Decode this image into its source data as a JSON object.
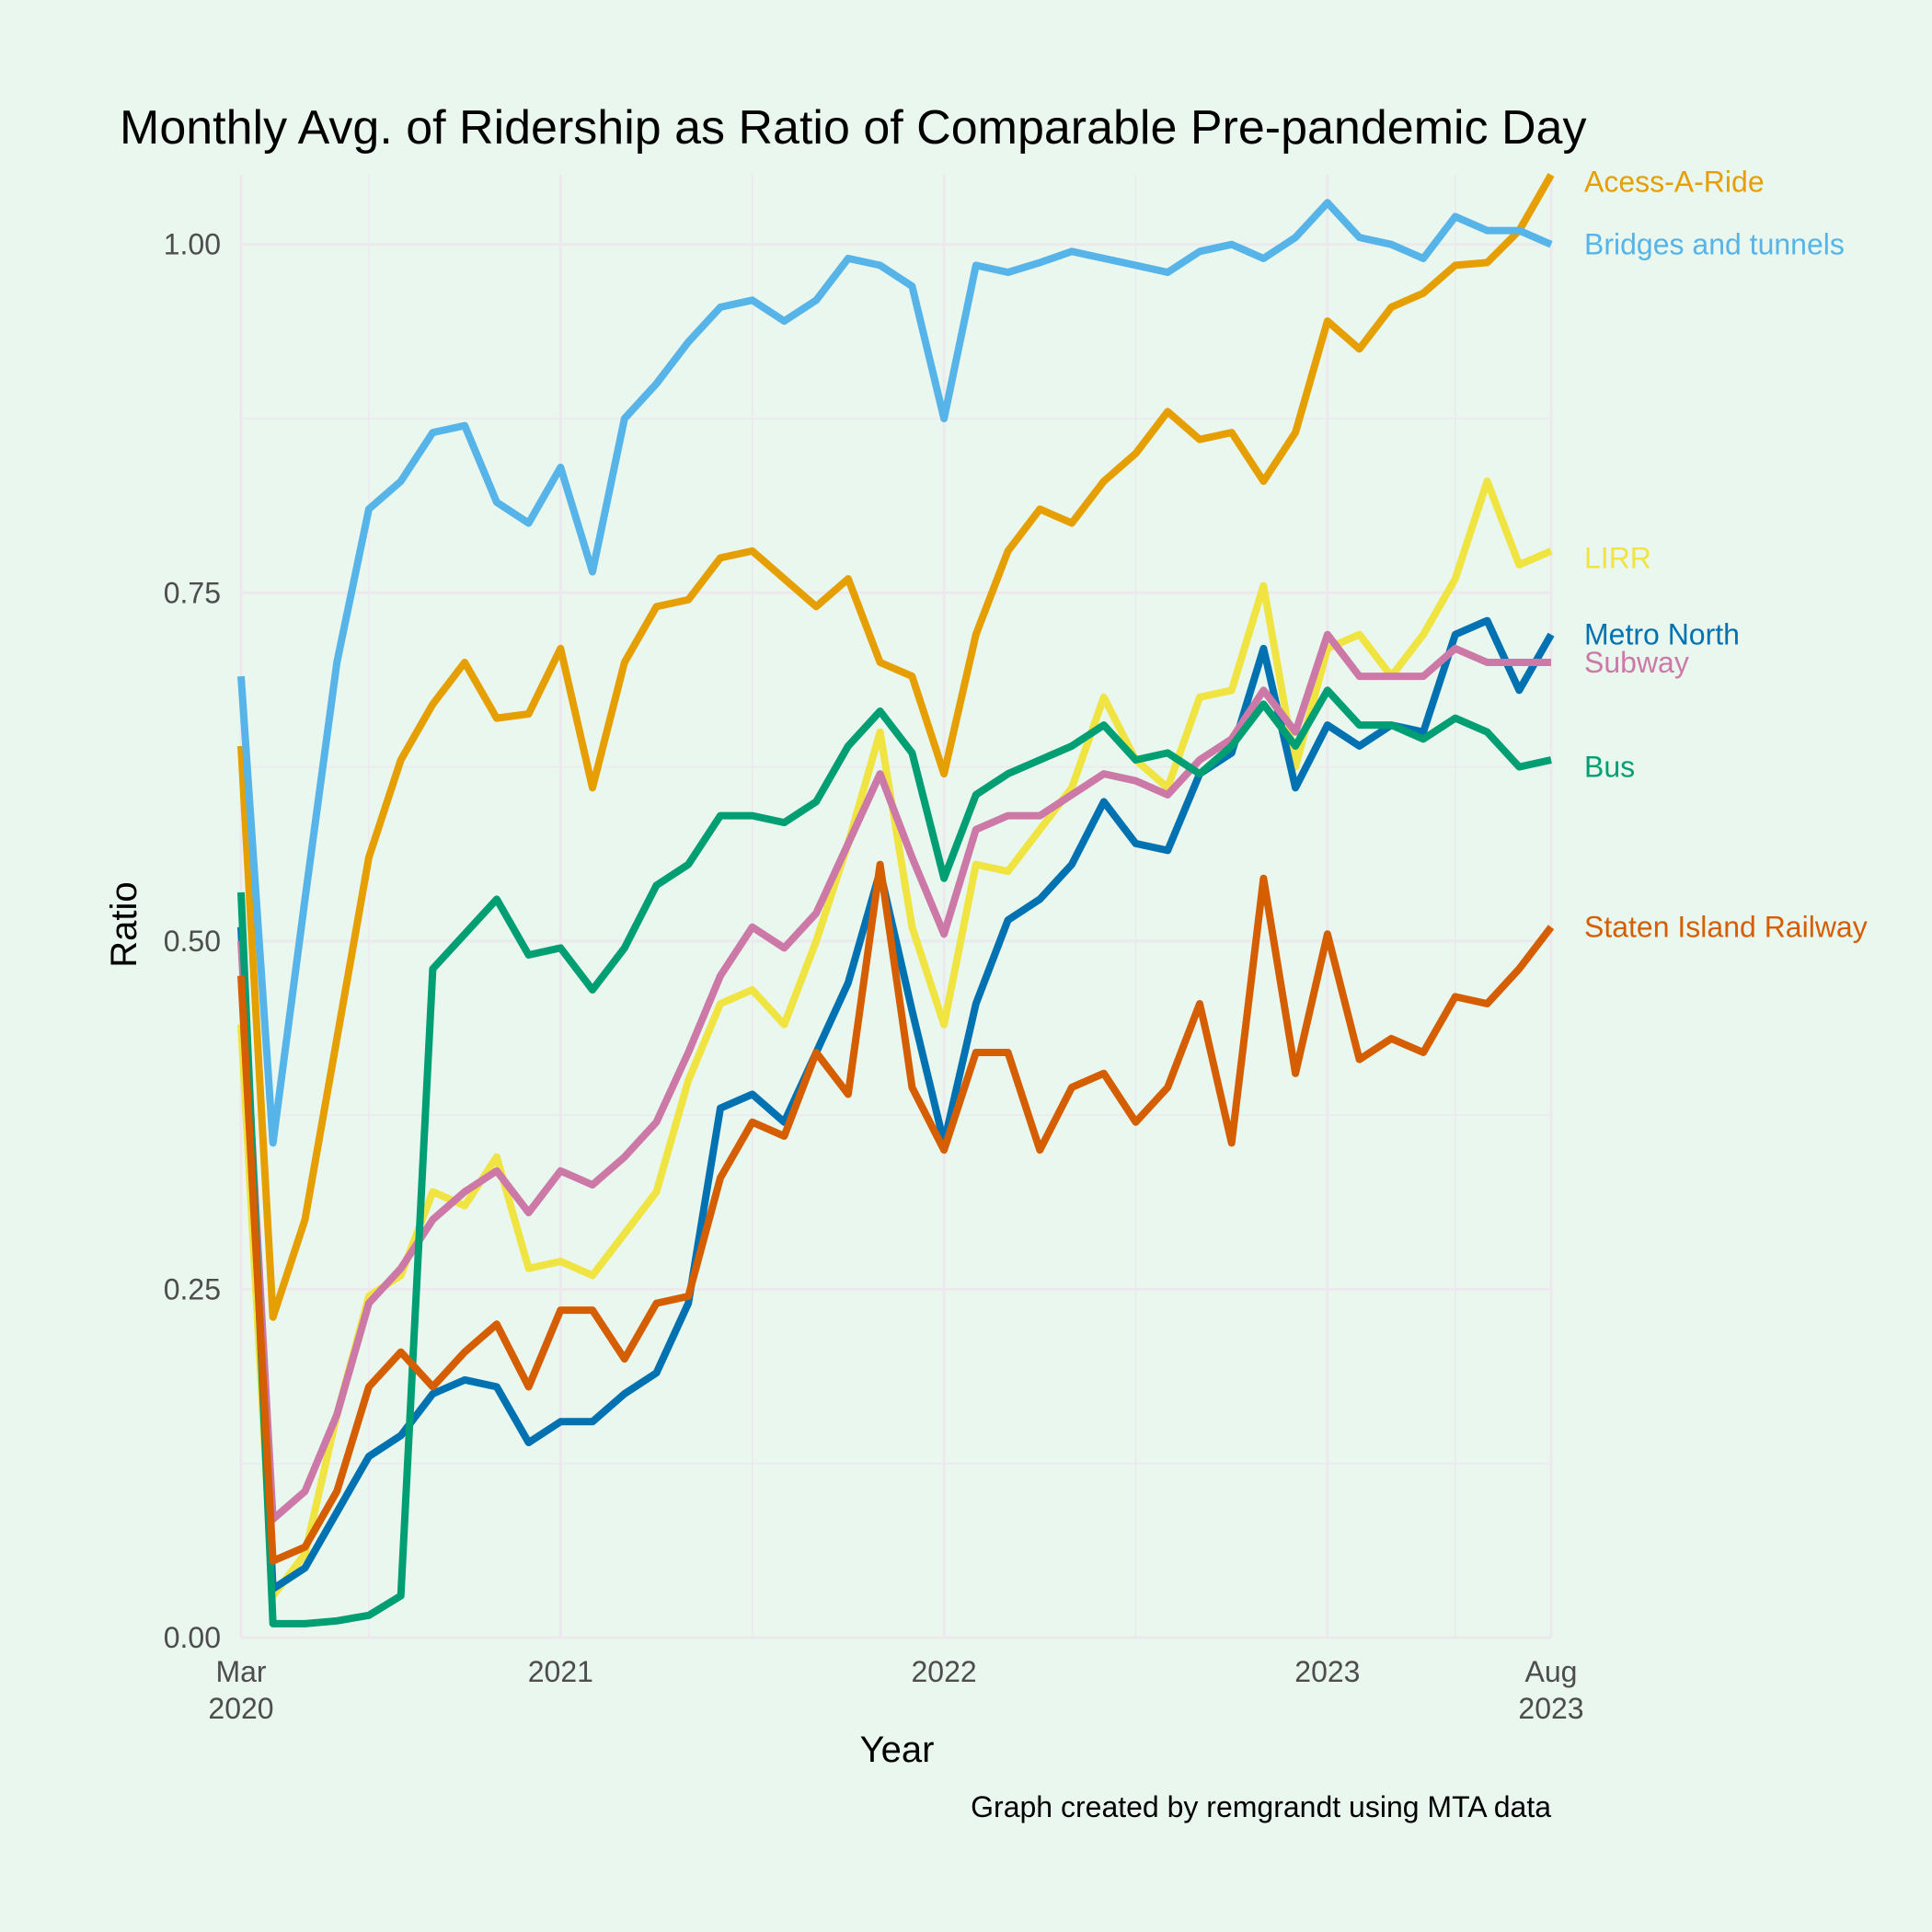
{
  "chart_data": {
    "type": "line",
    "title": "Monthly Avg. of Ridership as Ratio of Comparable Pre-pandemic Day",
    "xlabel": "Year",
    "ylabel": "Ratio",
    "caption": "Graph created by remgrandt using MTA data",
    "x_start": "2020-03",
    "x_end": "2023-08",
    "xlim": [
      "2020-03",
      "2023-08"
    ],
    "ylim": [
      0,
      1.05
    ],
    "grid": true,
    "legend": "direct labels at right end of lines",
    "x_ticks": [
      {
        "date": "2020-03",
        "label": "Mar",
        "label2": "2020"
      },
      {
        "date": "2021-01",
        "label": "2021",
        "label2": ""
      },
      {
        "date": "2022-01",
        "label": "2022",
        "label2": ""
      },
      {
        "date": "2023-01",
        "label": "2023",
        "label2": ""
      },
      {
        "date": "2023-08",
        "label": "Aug",
        "label2": "2023"
      }
    ],
    "y_ticks": [
      {
        "value": 0.0,
        "label": "0.00"
      },
      {
        "value": 0.25,
        "label": "0.25"
      },
      {
        "value": 0.5,
        "label": "0.50"
      },
      {
        "value": 0.75,
        "label": "0.75"
      },
      {
        "value": 1.0,
        "label": "1.00"
      }
    ],
    "series": [
      {
        "name": "Acess-A-Ride",
        "color": "#E69F00",
        "label_y": 1.045,
        "values": [
          0.64,
          0.23,
          0.3,
          0.43,
          0.56,
          0.63,
          0.67,
          0.7,
          0.66,
          0.663,
          0.71,
          0.61,
          0.7,
          0.74,
          0.745,
          0.775,
          0.78,
          0.76,
          0.74,
          0.76,
          0.7,
          0.69,
          0.62,
          0.72,
          0.78,
          0.81,
          0.8,
          0.83,
          0.85,
          0.88,
          0.86,
          0.865,
          0.83,
          0.865,
          0.945,
          0.925,
          0.955,
          0.965,
          0.985,
          0.987,
          1.01,
          1.05
        ]
      },
      {
        "name": "Bridges and tunnels",
        "color": "#56B4E9",
        "label_y": 1.0,
        "values": [
          0.69,
          0.355,
          0.53,
          0.7,
          0.81,
          0.83,
          0.865,
          0.87,
          0.815,
          0.8,
          0.84,
          0.765,
          0.875,
          0.9,
          0.93,
          0.955,
          0.96,
          0.945,
          0.96,
          0.99,
          0.985,
          0.97,
          0.875,
          0.985,
          0.98,
          0.987,
          0.995,
          0.99,
          0.985,
          0.98,
          0.995,
          1.0,
          0.99,
          1.005,
          1.03,
          1.005,
          1.0,
          0.99,
          1.02,
          1.01,
          1.01,
          1.0
        ]
      },
      {
        "name": "LIRR",
        "color": "#F0E442",
        "label_y": 0.775,
        "values": [
          0.44,
          0.03,
          0.06,
          0.16,
          0.245,
          0.26,
          0.32,
          0.31,
          0.345,
          0.265,
          0.27,
          0.26,
          0.29,
          0.32,
          0.4,
          0.455,
          0.465,
          0.44,
          0.5,
          0.57,
          0.65,
          0.51,
          0.44,
          0.555,
          0.55,
          0.58,
          0.61,
          0.675,
          0.63,
          0.61,
          0.675,
          0.68,
          0.755,
          0.625,
          0.71,
          0.72,
          0.69,
          0.72,
          0.76,
          0.83,
          0.77,
          0.78
        ]
      },
      {
        "name": "Metro North",
        "color": "#0072B2",
        "label_y": 0.72,
        "values": [
          0.51,
          0.035,
          0.05,
          0.09,
          0.13,
          0.145,
          0.175,
          0.185,
          0.18,
          0.14,
          0.155,
          0.155,
          0.175,
          0.19,
          0.24,
          0.38,
          0.39,
          0.37,
          0.42,
          0.47,
          0.55,
          0.45,
          0.355,
          0.455,
          0.515,
          0.53,
          0.555,
          0.6,
          0.57,
          0.565,
          0.62,
          0.635,
          0.71,
          0.61,
          0.655,
          0.64,
          0.655,
          0.65,
          0.72,
          0.73,
          0.68,
          0.72
        ]
      },
      {
        "name": "Subway",
        "color": "#CC79A7",
        "label_y": 0.7,
        "values": [
          0.5,
          0.085,
          0.105,
          0.16,
          0.24,
          0.265,
          0.3,
          0.32,
          0.335,
          0.305,
          0.335,
          0.325,
          0.345,
          0.37,
          0.42,
          0.475,
          0.51,
          0.495,
          0.52,
          0.57,
          0.62,
          0.56,
          0.505,
          0.58,
          0.59,
          0.59,
          0.605,
          0.62,
          0.615,
          0.605,
          0.63,
          0.645,
          0.68,
          0.65,
          0.72,
          0.69,
          0.69,
          0.69,
          0.71,
          0.7,
          0.7,
          0.7
        ]
      },
      {
        "name": "Bus",
        "color": "#009E73",
        "label_y": 0.625,
        "values": [
          0.535,
          0.01,
          0.01,
          0.012,
          0.016,
          0.03,
          0.48,
          0.505,
          0.53,
          0.49,
          0.495,
          0.465,
          0.495,
          0.54,
          0.555,
          0.59,
          0.59,
          0.585,
          0.6,
          0.64,
          0.665,
          0.635,
          0.545,
          0.605,
          0.62,
          0.63,
          0.64,
          0.655,
          0.63,
          0.635,
          0.62,
          0.64,
          0.67,
          0.64,
          0.68,
          0.655,
          0.655,
          0.645,
          0.66,
          0.65,
          0.625,
          0.63
        ]
      },
      {
        "name": "Staten Island Railway",
        "color": "#D55E00",
        "label_y": 0.51,
        "values": [
          0.475,
          0.055,
          0.065,
          0.105,
          0.18,
          0.205,
          0.18,
          0.205,
          0.225,
          0.18,
          0.235,
          0.235,
          0.2,
          0.24,
          0.245,
          0.33,
          0.37,
          0.36,
          0.42,
          0.39,
          0.555,
          0.395,
          0.35,
          0.42,
          0.42,
          0.35,
          0.395,
          0.405,
          0.37,
          0.395,
          0.455,
          0.355,
          0.545,
          0.405,
          0.505,
          0.415,
          0.43,
          0.42,
          0.46,
          0.455,
          0.48,
          0.51
        ]
      }
    ]
  }
}
